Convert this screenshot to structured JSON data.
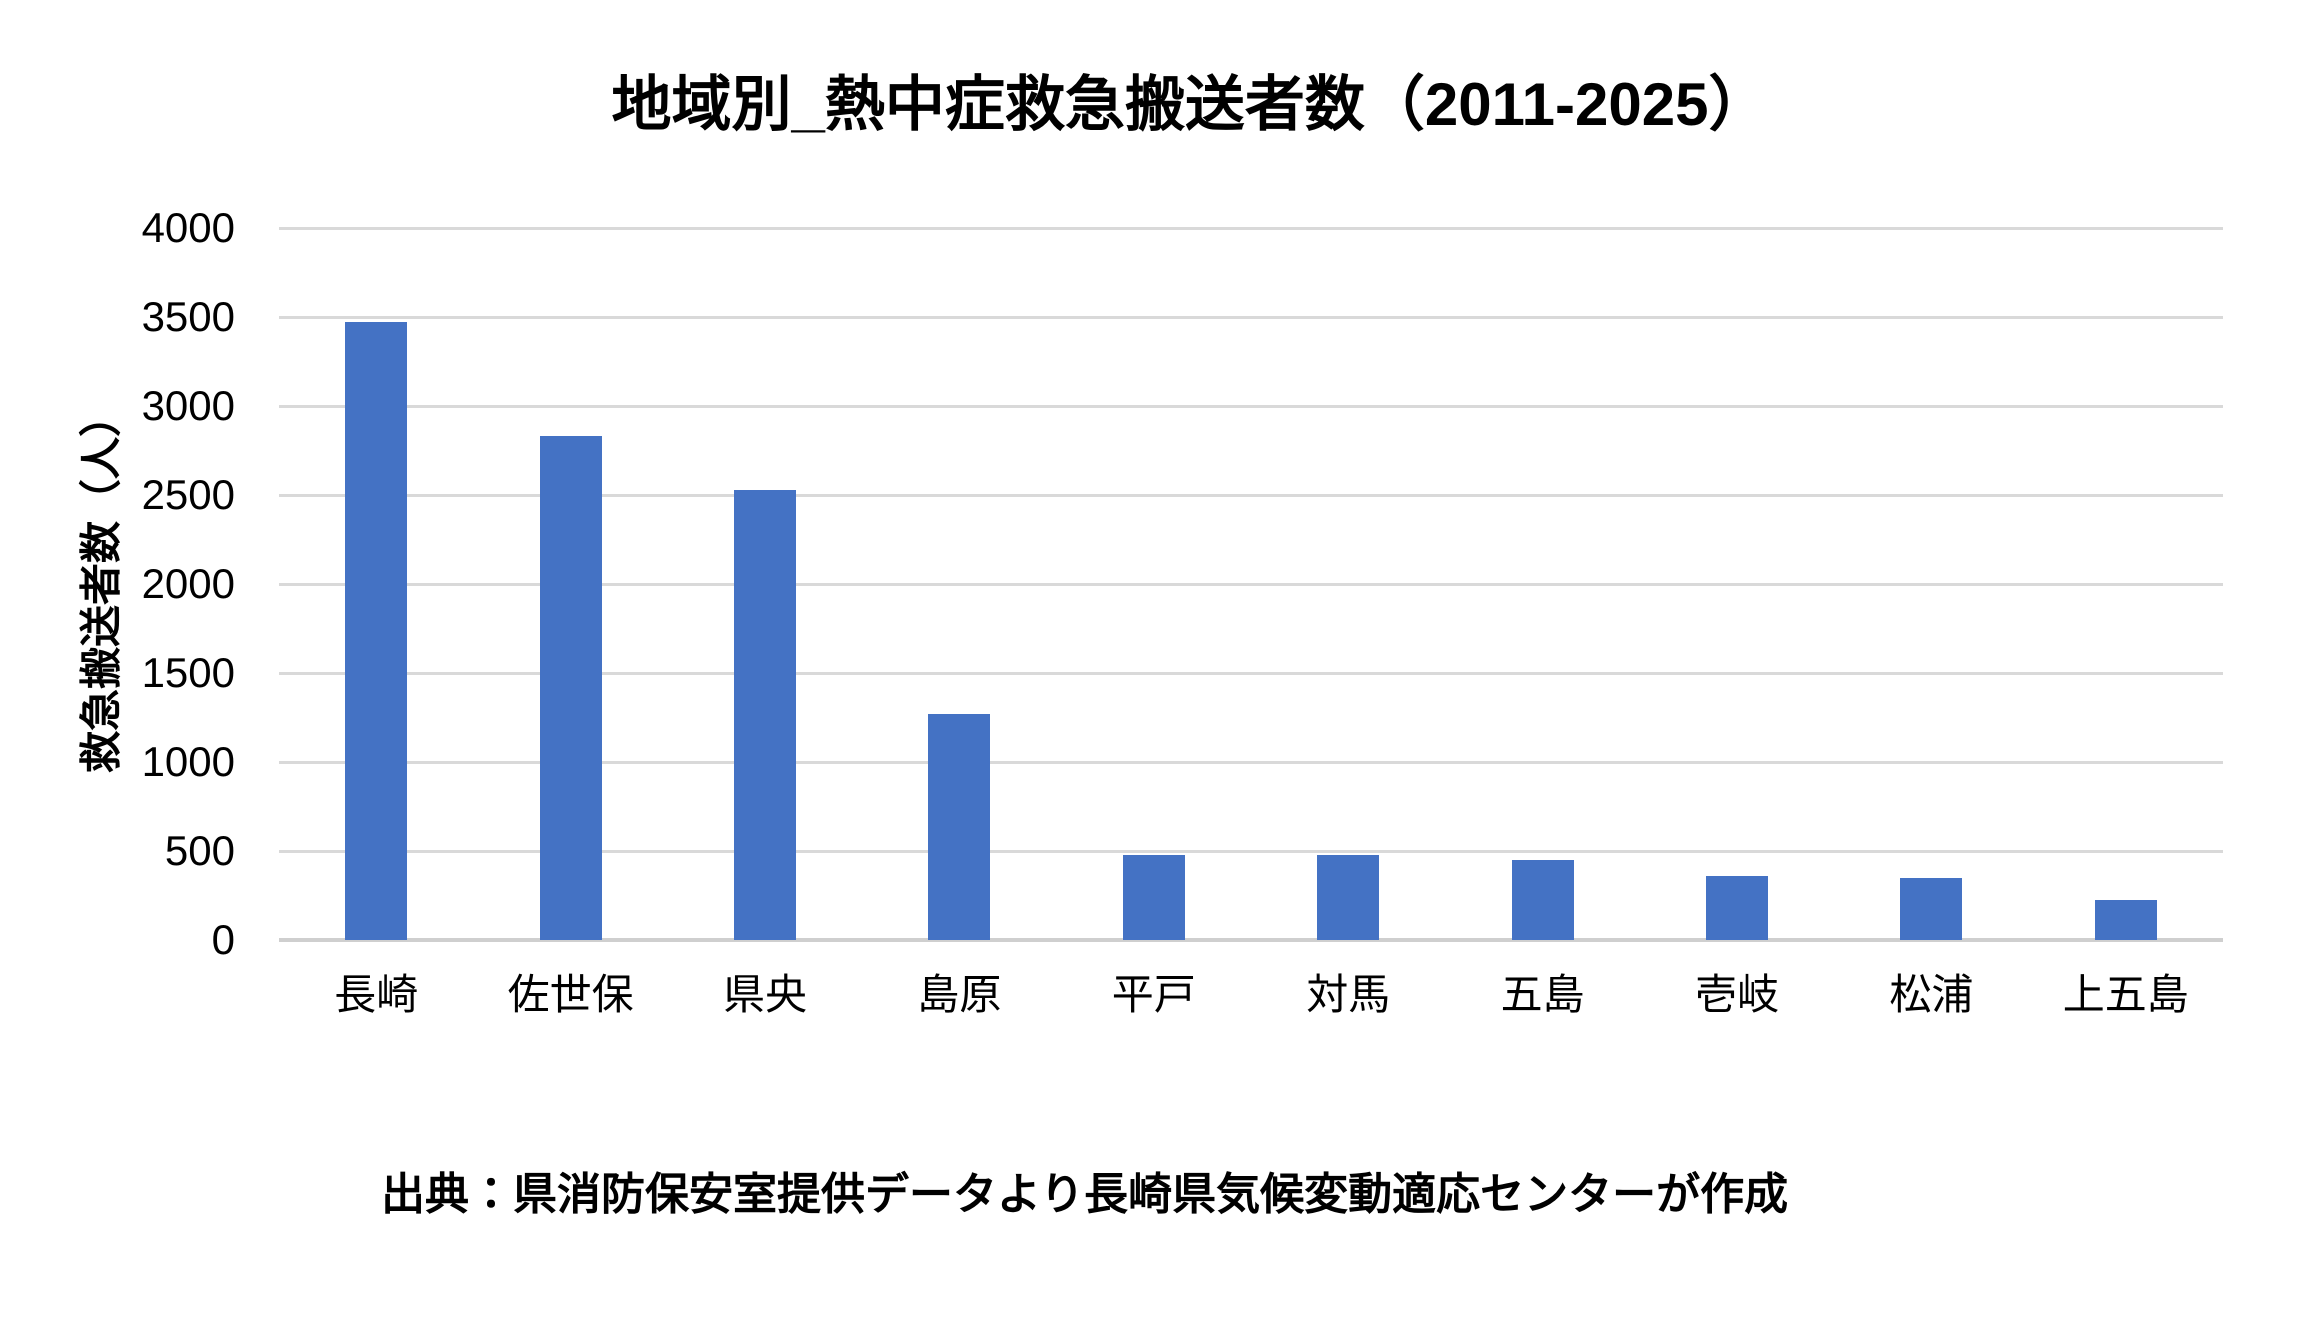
{
  "chart_data": {
    "type": "bar",
    "title": "地域別_熱中症救急搬送者数（2011-2025）",
    "ylabel": "救急搬送者数（人）",
    "xlabel": "",
    "categories": [
      "長崎",
      "佐世保",
      "県央",
      "島原",
      "平戸",
      "対馬",
      "五島",
      "壱岐",
      "松浦",
      "上五島"
    ],
    "values": [
      3470,
      2830,
      2530,
      1270,
      480,
      480,
      450,
      360,
      350,
      225
    ],
    "ylim": [
      0,
      4000
    ],
    "yticks": [
      0,
      500,
      1000,
      1500,
      2000,
      2500,
      3000,
      3500,
      4000
    ],
    "grid": "horizontal",
    "legend": "none",
    "bar_color": "#4472C4",
    "gridline_color": "#D9D9D9",
    "axis_line_color": "#CFCFCF",
    "text_color": "#000000",
    "background_color": "#FFFFFF",
    "source": "出典：県消防保安室提供データより長崎県気候変動適応センターが作成"
  }
}
